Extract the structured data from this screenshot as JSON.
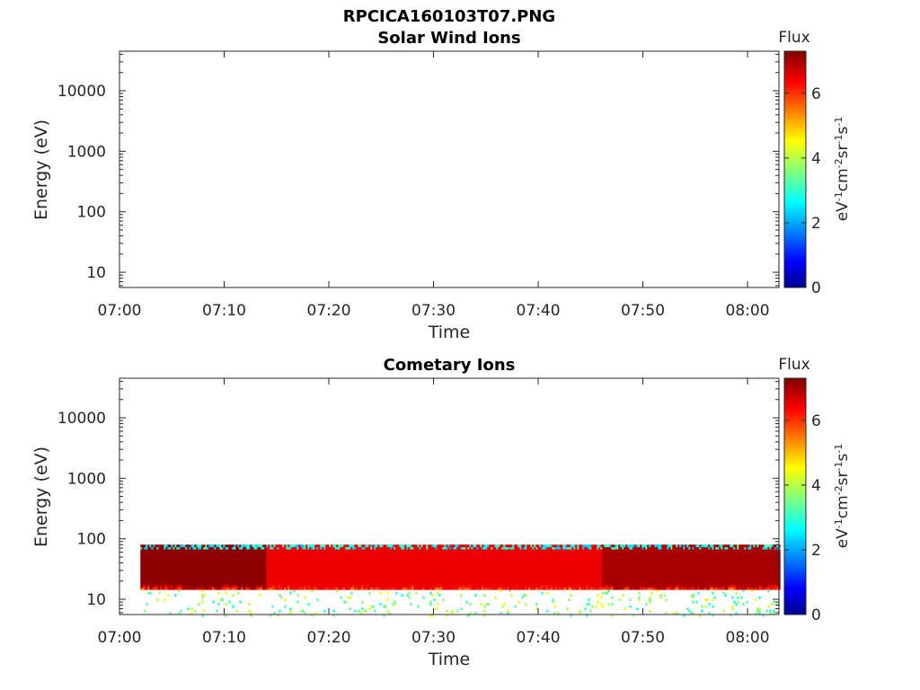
{
  "figure_title": "RPCICA160103T07.PNG",
  "colorbar": {
    "label": "Flux",
    "units": "eV-1cm-2sr-1s-1",
    "range": [
      0,
      7.3
    ],
    "ticks": [
      "0",
      "2",
      "4",
      "6"
    ],
    "colormap": "jet",
    "colors": [
      "#00008f",
      "#0000ff",
      "#00ffff",
      "#ffff00",
      "#ff0000",
      "#800000"
    ]
  },
  "chart_data": [
    {
      "type": "heatmap",
      "title": "Solar Wind Ions",
      "xlabel": "Time",
      "ylabel": "Energy (eV)",
      "x_ticks": [
        "07:00",
        "07:10",
        "07:20",
        "07:30",
        "07:40",
        "07:50",
        "08:00"
      ],
      "y_ticks": [
        "10",
        "100",
        "1000",
        "10000"
      ],
      "y_scale": "log",
      "xlim": [
        "07:00",
        "08:03"
      ],
      "ylim": [
        5.6,
        45000
      ],
      "data": "empty (no flux)"
    },
    {
      "type": "heatmap",
      "title": "Cometary Ions",
      "xlabel": "Time",
      "ylabel": "Energy (eV)",
      "x_ticks": [
        "07:00",
        "07:10",
        "07:20",
        "07:30",
        "07:40",
        "07:50",
        "08:00"
      ],
      "y_ticks": [
        "10",
        "100",
        "1000",
        "10000"
      ],
      "y_scale": "log",
      "xlim": [
        "07:00",
        "08:03"
      ],
      "ylim": [
        5.6,
        45000
      ],
      "band": {
        "t_start": "07:02",
        "t_end": "08:03",
        "energy_top": 80,
        "energy_bottom": 14,
        "peak_energy": 30,
        "segments": [
          {
            "from": "07:02",
            "to": "07:14",
            "peak_flux": 7.0
          },
          {
            "from": "07:14",
            "to": "07:46",
            "peak_flux": 6.3
          },
          {
            "from": "07:46",
            "to": "07:52",
            "peak_flux": 6.8
          },
          {
            "from": "07:52",
            "to": "08:03",
            "peak_flux": 6.8
          }
        ]
      }
    }
  ]
}
